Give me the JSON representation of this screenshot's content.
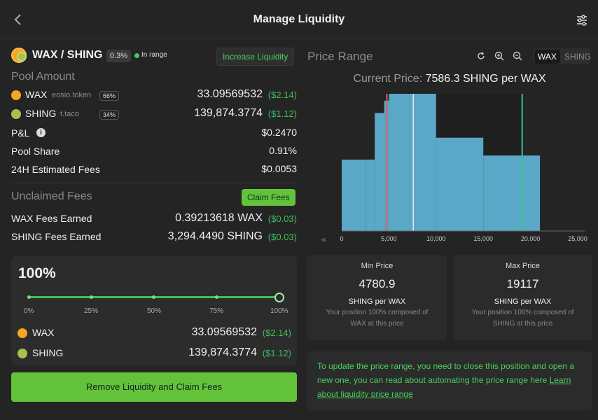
{
  "header": {
    "title": "Manage Liquidity"
  },
  "pair": {
    "name": "WAX / SHING",
    "fee": "0.3%",
    "status": "In range"
  },
  "buttons": {
    "increase": "Increase Liquidity",
    "claim": "Claim Fees",
    "remove": "Remove Liquidity and Claim Fees"
  },
  "pool": {
    "label": "Pool Amount",
    "tokens": [
      {
        "symbol": "WAX",
        "contract": "eosio.token",
        "share": "66%",
        "amount": "33.09569532",
        "usd": "($2.14)"
      },
      {
        "symbol": "SHING",
        "contract": "t.taco",
        "share": "34%",
        "amount": "139,874.3774",
        "usd": "($1.12)"
      }
    ],
    "pnl_label": "P&L",
    "pnl": "$0.2470",
    "share_label": "Pool Share",
    "share": "0.91%",
    "fees24_label": "24H Estimated Fees",
    "fees24": "$0.0053"
  },
  "unclaimed": {
    "label": "Unclaimed Fees",
    "rows": [
      {
        "label": "WAX Fees Earned",
        "amount": "0.39213618 WAX",
        "usd": "($0.03)"
      },
      {
        "label": "SHING Fees Earned",
        "amount": "3,294.4490 SHING",
        "usd": "($0.03)"
      }
    ]
  },
  "remove": {
    "percent": "100%",
    "slider_fraction": 1.0,
    "ticks": [
      "0%",
      "25%",
      "50%",
      "75%",
      "100%"
    ],
    "tokens": [
      {
        "symbol": "WAX",
        "amount": "33.09569532",
        "usd": "($2.14)"
      },
      {
        "symbol": "SHING",
        "amount": "139,874.3774",
        "usd": "($1.12)"
      }
    ]
  },
  "price_range": {
    "label": "Price Range",
    "toggle": [
      "WAX",
      "SHING"
    ],
    "current_label": "Current Price:",
    "current_value": "7586.3 SHING per WAX",
    "min": {
      "title": "Min Price",
      "value": "4780.9",
      "unit": "SHING per WAX",
      "note": "Your position 100% composed of WAX at this price"
    },
    "max": {
      "title": "Max Price",
      "value": "19117",
      "unit": "SHING per WAX",
      "note": "Your position 100% composed of SHING at this price"
    }
  },
  "note": {
    "text": "To update the price range, you need to close this position and open a new one, you can read about automating the price range here",
    "link": "Learn about liquidity price range"
  },
  "colors": {
    "accent": "#62c23a",
    "green_text": "#3fbf57",
    "bar": "#5aa8c8",
    "min_line": "#e05a5a",
    "max_line": "#34c38f",
    "current_line": "#e8e8e8"
  },
  "chart_data": {
    "type": "area",
    "x_ticks": [
      "0",
      "5,000",
      "10,000",
      "15,000",
      "20,000",
      "25,000"
    ],
    "xlim": [
      0,
      25000
    ],
    "x": [
      0,
      2500,
      3500,
      4500,
      5000,
      10000,
      15000,
      19117,
      21000
    ],
    "y": [
      0.52,
      0.52,
      0.86,
      0.95,
      1.0,
      0.68,
      0.55,
      0.55,
      0.52
    ],
    "current_price": 7586.3,
    "min_price": 4780.9,
    "max_price": 19117
  }
}
